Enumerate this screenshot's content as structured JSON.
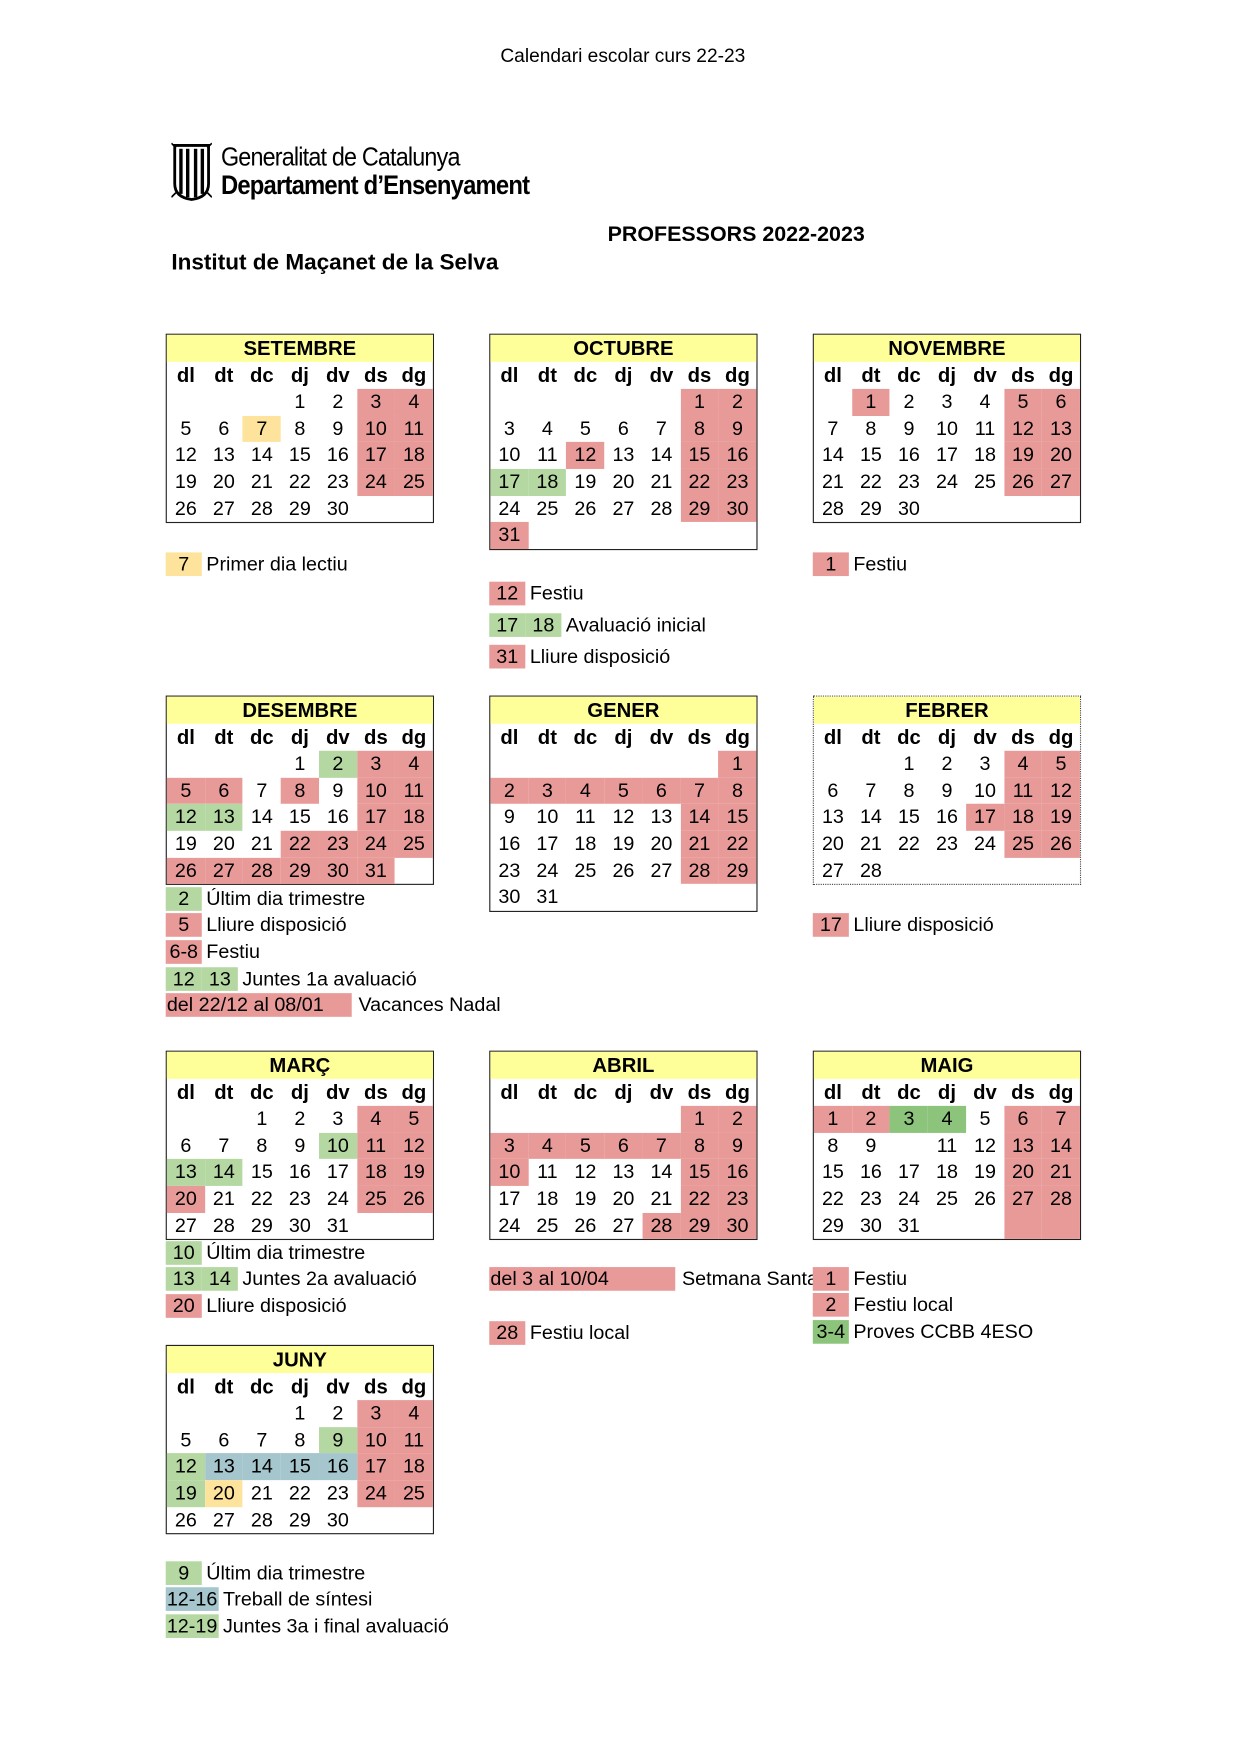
{
  "doc_title": "Calendari escolar curs 22-23",
  "logo": {
    "line1": "Generalitat de Catalunya",
    "line2": "Departament d’Ensenyament",
    "icon": "generalitat-emblem-icon"
  },
  "subtitle": "PROFESSORS 2022-2023",
  "institution": "Institut de Maçanet de la Selva",
  "colors": {
    "r": "#e89a98",
    "g": "#b5d8a3",
    "G": "#8dc47c",
    "y": "#fde39c",
    "b": "#a5c6cc",
    "header": "#ffff99"
  },
  "weekdays": [
    "dl",
    "dt",
    "dc",
    "dj",
    "dv",
    "ds",
    "dg"
  ],
  "months": [
    {
      "name": "SETEMBRE",
      "weeks": [
        [
          "",
          "",
          "",
          "1",
          "2",
          "3:r",
          "4:r"
        ],
        [
          "5",
          "6",
          "7:y",
          "8",
          "9",
          "10:r",
          "11:r"
        ],
        [
          "12",
          "13",
          "14",
          "15",
          "16",
          "17:r",
          "18:r"
        ],
        [
          "19",
          "20",
          "21",
          "22",
          "23",
          "24:r",
          "25:r"
        ],
        [
          "26",
          "27",
          "28",
          "29",
          "30",
          "",
          ""
        ]
      ],
      "legend": [
        {
          "keys": [
            {
              "t": "7",
              "c": "y"
            }
          ],
          "label": "Primer dia lectiu"
        }
      ]
    },
    {
      "name": "OCTUBRE",
      "weeks": [
        [
          "",
          "",
          "",
          "",
          "",
          "1:r",
          "2:r"
        ],
        [
          "3",
          "4",
          "5",
          "6",
          "7",
          "8:r",
          "9:r"
        ],
        [
          "10",
          "11",
          "12:r",
          "13",
          "14",
          "15:r",
          "16:r"
        ],
        [
          "17:g",
          "18:g",
          "19",
          "20",
          "21",
          "22:r",
          "23:r"
        ],
        [
          "24",
          "25",
          "26",
          "27",
          "28",
          "29:r",
          "30:r"
        ],
        [
          "31:r",
          "",
          "",
          "",
          "",
          "",
          ""
        ]
      ],
      "legend": [
        {
          "keys": [
            {
              "t": "12",
              "c": "r"
            }
          ],
          "label": "Festiu"
        },
        {
          "keys": [
            {
              "t": "17",
              "c": "g"
            },
            {
              "t": "18",
              "c": "g"
            }
          ],
          "label": "Avaluació inicial"
        },
        {
          "keys": [
            {
              "t": "31",
              "c": "r"
            }
          ],
          "label": "Lliure disposició"
        }
      ]
    },
    {
      "name": "NOVEMBRE",
      "weeks": [
        [
          "",
          "1:r",
          "2",
          "3",
          "4",
          "5:r",
          "6:r"
        ],
        [
          "7",
          "8",
          "9",
          "10",
          "11",
          "12:r",
          "13:r"
        ],
        [
          "14",
          "15",
          "16",
          "17",
          "18",
          "19:r",
          "20:r"
        ],
        [
          "21",
          "22",
          "23",
          "24",
          "25",
          "26:r",
          "27:r"
        ],
        [
          "28",
          "29",
          "30",
          "",
          "",
          "",
          ""
        ]
      ],
      "legend": [
        {
          "keys": [
            {
              "t": "1",
              "c": "r"
            }
          ],
          "label": "Festiu"
        }
      ]
    },
    {
      "name": "DESEMBRE",
      "weeks": [
        [
          "",
          "",
          "",
          "1",
          "2:g",
          "3:r",
          "4:r"
        ],
        [
          "5:r",
          "6:r",
          "7",
          "8:r",
          "9",
          "10:r",
          "11:r"
        ],
        [
          "12:g",
          "13:g",
          "14",
          "15",
          "16",
          "17:r",
          "18:r"
        ],
        [
          "19",
          "20",
          "21",
          "22:r",
          "23:r",
          "24:r",
          "25:r"
        ],
        [
          "26:r",
          "27:r",
          "28:r",
          "29:r",
          "30:r",
          "31:r",
          ""
        ]
      ],
      "legend": [
        {
          "keys": [
            {
              "t": "2",
              "c": "g"
            }
          ],
          "label": "Últim dia trimestre"
        },
        {
          "keys": [
            {
              "t": "5",
              "c": "r"
            }
          ],
          "label": "Lliure disposició"
        },
        {
          "keys": [
            {
              "t": "6-8",
              "c": "r"
            }
          ],
          "label": "Festiu"
        },
        {
          "keys": [
            {
              "t": "12",
              "c": "g"
            },
            {
              "t": "13",
              "c": "g"
            }
          ],
          "label": "Juntes 1a avaluació"
        },
        {
          "keys": [
            {
              "t": "del 22/12 al 08/01",
              "c": "r"
            }
          ],
          "label": "Vacances Nadal"
        }
      ]
    },
    {
      "name": "GENER",
      "weeks": [
        [
          "",
          "",
          "",
          "",
          "",
          "",
          "1:r"
        ],
        [
          "2:r",
          "3:r",
          "4:r",
          "5:r",
          "6:r",
          "7:r",
          "8:r"
        ],
        [
          "9",
          "10",
          "11",
          "12",
          "13",
          "14:r",
          "15:r"
        ],
        [
          "16",
          "17",
          "18",
          "19",
          "20",
          "21:r",
          "22:r"
        ],
        [
          "23",
          "24",
          "25",
          "26",
          "27",
          "28:r",
          "29:r"
        ],
        [
          "30",
          "31",
          "",
          "",
          "",
          "",
          ""
        ]
      ],
      "legend": []
    },
    {
      "name": "FEBRER",
      "dotted": true,
      "weeks": [
        [
          "",
          "",
          "1",
          "2",
          "3",
          "4:r",
          "5:r"
        ],
        [
          "6",
          "7",
          "8",
          "9",
          "10",
          "11:r",
          "12:r"
        ],
        [
          "13",
          "14",
          "15",
          "16",
          "17:r",
          "18:r",
          "19:r"
        ],
        [
          "20",
          "21",
          "22",
          "23",
          "24",
          "25:r",
          "26:r"
        ],
        [
          "27",
          "28",
          "",
          "",
          "",
          "",
          ""
        ]
      ],
      "legend": [
        {
          "keys": [
            {
              "t": "17",
              "c": "r"
            }
          ],
          "label": "Lliure disposició"
        }
      ]
    },
    {
      "name": "MARÇ",
      "weeks": [
        [
          "",
          "",
          "1",
          "2",
          "3",
          "4:r",
          "5:r"
        ],
        [
          "6",
          "7",
          "8",
          "9",
          "10:g",
          "11:r",
          "12:r"
        ],
        [
          "13:g",
          "14:g",
          "15",
          "16",
          "17",
          "18:r",
          "19:r"
        ],
        [
          "20:r",
          "21",
          "22",
          "23",
          "24",
          "25:r",
          "26:r"
        ],
        [
          "27",
          "28",
          "29",
          "30",
          "31",
          "",
          ""
        ]
      ],
      "legend": [
        {
          "keys": [
            {
              "t": "10",
              "c": "g"
            }
          ],
          "label": "Últim dia trimestre"
        },
        {
          "keys": [
            {
              "t": "13",
              "c": "g"
            },
            {
              "t": "14",
              "c": "g"
            }
          ],
          "label": "Juntes 2a avaluació"
        },
        {
          "keys": [
            {
              "t": "20",
              "c": "r"
            }
          ],
          "label": "Lliure disposició"
        }
      ]
    },
    {
      "name": "ABRIL",
      "weeks": [
        [
          "",
          "",
          "",
          "",
          "",
          "1:r",
          "2:r"
        ],
        [
          "3:r",
          "4:r",
          "5:r",
          "6:r",
          "7:r",
          "8:r",
          "9:r"
        ],
        [
          "10:r",
          "11",
          "12",
          "13",
          "14",
          "15:r",
          "16:r"
        ],
        [
          "17",
          "18",
          "19",
          "20",
          "21",
          "22:r",
          "23:r"
        ],
        [
          "24",
          "25",
          "26",
          "27",
          "28:r",
          "29:r",
          "30:r"
        ]
      ],
      "legend": [
        {
          "keys": [
            {
              "t": "del 3 al 10/04",
              "c": "r"
            }
          ],
          "label": "Setmana Santa"
        },
        {
          "keys": [
            {
              "t": "28",
              "c": "r"
            }
          ],
          "label": "Festiu local"
        }
      ]
    },
    {
      "name": "MAIG",
      "weeks": [
        [
          "1:r",
          "2:r",
          "3:G",
          "4:G",
          "5",
          "6:r",
          "7:r"
        ],
        [
          "8",
          "9",
          "",
          "11",
          "12",
          "13:r",
          "14:r"
        ],
        [
          "15",
          "16",
          "17",
          "18",
          "19",
          "20:r",
          "21:r"
        ],
        [
          "22",
          "23",
          "24",
          "25",
          "26",
          "27:r",
          "28:r"
        ],
        [
          "29",
          "30",
          "31",
          "",
          "",
          ":r",
          ":r"
        ]
      ],
      "legend": [
        {
          "keys": [
            {
              "t": "1",
              "c": "r"
            }
          ],
          "label": "Festiu"
        },
        {
          "keys": [
            {
              "t": "2",
              "c": "r"
            }
          ],
          "label": "Festiu local"
        },
        {
          "keys": [
            {
              "t": "3-4",
              "c": "G"
            }
          ],
          "label": "Proves CCBB 4ESO"
        }
      ]
    },
    {
      "name": "JUNY",
      "weeks": [
        [
          "",
          "",
          "",
          "1",
          "2",
          "3:r",
          "4:r"
        ],
        [
          "5",
          "6",
          "7",
          "8",
          "9:g",
          "10:r",
          "11:r"
        ],
        [
          "12:g",
          "13:b",
          "14:b",
          "15:b",
          "16:b",
          "17:r",
          "18:r"
        ],
        [
          "19:g",
          "20:y",
          "21",
          "22",
          "23",
          "24:r",
          "25:r"
        ],
        [
          "26",
          "27",
          "28",
          "29",
          "30",
          "",
          ""
        ]
      ],
      "legend": [
        {
          "keys": [
            {
              "t": "9",
              "c": "g"
            }
          ],
          "label": "Últim dia trimestre"
        },
        {
          "keys": [
            {
              "t": "12-16",
              "c": "b"
            }
          ],
          "label": "Treball de síntesi"
        },
        {
          "keys": [
            {
              "t": "12-19",
              "c": "g"
            }
          ],
          "label": "Juntes 3a i final avaluació"
        }
      ]
    }
  ]
}
